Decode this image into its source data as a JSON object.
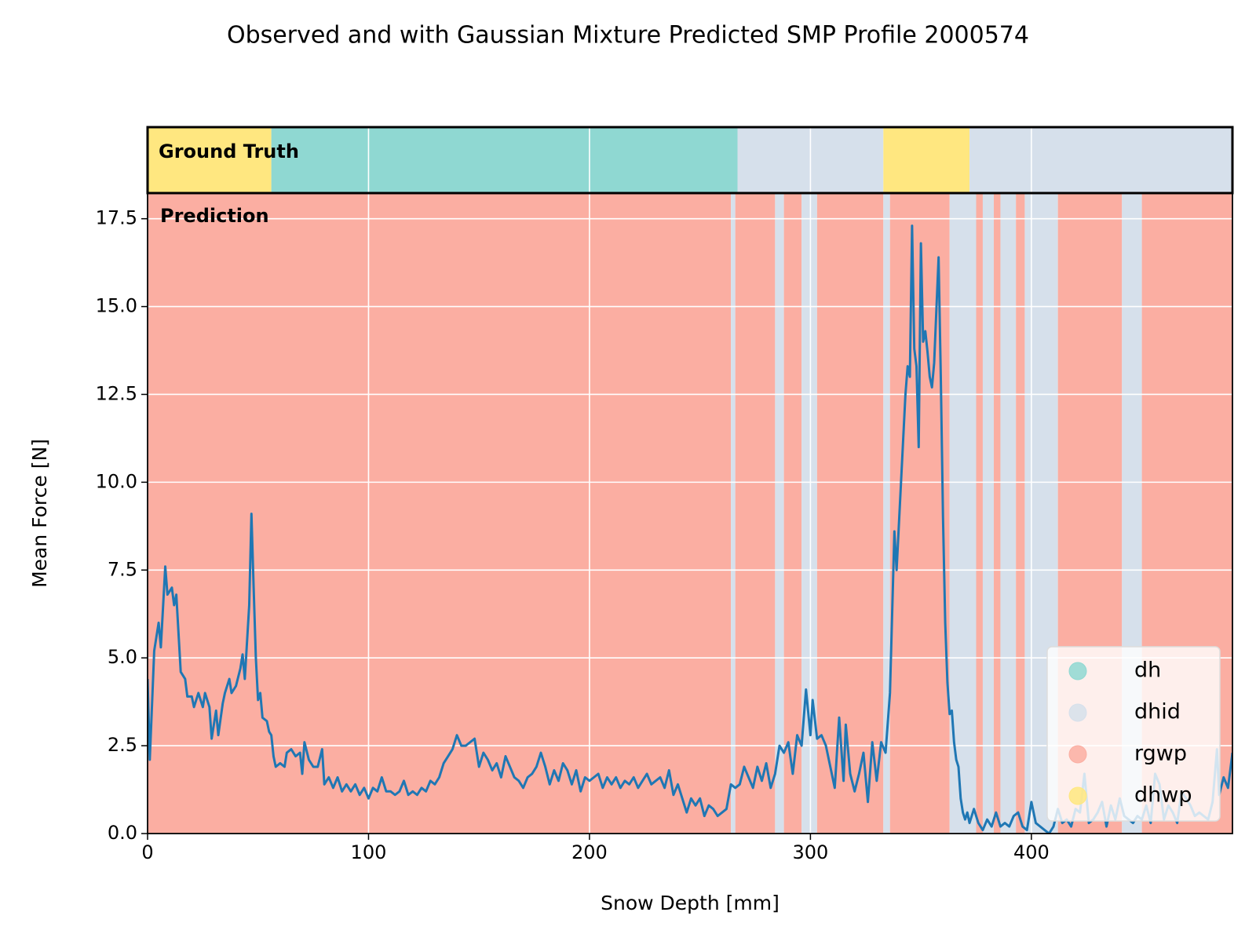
{
  "chart_data": {
    "type": "line",
    "title": "Observed and with Gaussian Mixture Predicted SMP Profile 2000574",
    "xlabel": "Snow Depth [mm]",
    "ylabel": "Mean Force [N]",
    "xlim": [
      0,
      491
    ],
    "ylim": [
      0,
      18.23
    ],
    "xticks": [
      0,
      100,
      200,
      300,
      400
    ],
    "yticks": [
      {
        "value": 0,
        "label": "0.0"
      },
      2.5,
      {
        "value": 5,
        "label": "5.0"
      },
      7.5,
      {
        "value": 10,
        "label": "10.0"
      },
      12.5,
      {
        "value": 15,
        "label": "15.0"
      },
      17.5
    ],
    "grid": true,
    "legend_loc": "lower right",
    "classes": [
      {
        "name": "dh",
        "color": "#8fd8d2"
      },
      {
        "name": "dhid",
        "color": "#d6e0eb"
      },
      {
        "name": "rgwp",
        "color": "#fbaea2"
      },
      {
        "name": "dhwp",
        "color": "#ffe780"
      }
    ],
    "ground_truth": {
      "label": "Ground Truth",
      "segments": [
        {
          "start": 0,
          "end": 56,
          "class": "dhwp"
        },
        {
          "start": 56,
          "end": 267,
          "class": "dh"
        },
        {
          "start": 267,
          "end": 333,
          "class": "dhid"
        },
        {
          "start": 333,
          "end": 372,
          "class": "dhwp"
        },
        {
          "start": 372,
          "end": 491,
          "class": "dhid"
        }
      ]
    },
    "prediction": {
      "label": "Prediction",
      "segments": [
        {
          "start": 0,
          "end": 264,
          "class": "rgwp"
        },
        {
          "start": 264,
          "end": 266,
          "class": "dhid"
        },
        {
          "start": 266,
          "end": 284,
          "class": "rgwp"
        },
        {
          "start": 284,
          "end": 288,
          "class": "dhid"
        },
        {
          "start": 288,
          "end": 296,
          "class": "rgwp"
        },
        {
          "start": 296,
          "end": 303,
          "class": "dhid"
        },
        {
          "start": 303,
          "end": 333,
          "class": "rgwp"
        },
        {
          "start": 333,
          "end": 336,
          "class": "dhid"
        },
        {
          "start": 336,
          "end": 363,
          "class": "rgwp"
        },
        {
          "start": 363,
          "end": 375,
          "class": "dhid"
        },
        {
          "start": 375,
          "end": 378,
          "class": "rgwp"
        },
        {
          "start": 378,
          "end": 383,
          "class": "dhid"
        },
        {
          "start": 383,
          "end": 386,
          "class": "rgwp"
        },
        {
          "start": 386,
          "end": 393,
          "class": "dhid"
        },
        {
          "start": 393,
          "end": 397,
          "class": "rgwp"
        },
        {
          "start": 397,
          "end": 412,
          "class": "dhid"
        },
        {
          "start": 412,
          "end": 441,
          "class": "rgwp"
        },
        {
          "start": 441,
          "end": 450,
          "class": "dhid"
        },
        {
          "start": 450,
          "end": 491,
          "class": "rgwp"
        }
      ]
    },
    "x": [
      0,
      1,
      3,
      5,
      6,
      8,
      9,
      11,
      12,
      13,
      15,
      17,
      18,
      20,
      21,
      23,
      25,
      26,
      28,
      29,
      31,
      32,
      34,
      35,
      37,
      38,
      40,
      42,
      43,
      44,
      46,
      47,
      48,
      49,
      50,
      51,
      52,
      54,
      55,
      56,
      57,
      58,
      60,
      62,
      63,
      65,
      67,
      69,
      70,
      71,
      73,
      75,
      77,
      79,
      80,
      82,
      84,
      86,
      88,
      90,
      92,
      94,
      96,
      98,
      100,
      102,
      104,
      106,
      108,
      110,
      112,
      114,
      116,
      118,
      120,
      122,
      124,
      126,
      128,
      130,
      132,
      134,
      136,
      138,
      140,
      142,
      144,
      146,
      148,
      150,
      152,
      154,
      156,
      158,
      160,
      162,
      164,
      166,
      168,
      170,
      172,
      174,
      176,
      178,
      180,
      182,
      184,
      186,
      188,
      190,
      192,
      194,
      196,
      198,
      200,
      202,
      204,
      206,
      208,
      210,
      212,
      214,
      216,
      218,
      220,
      222,
      224,
      226,
      228,
      230,
      232,
      234,
      236,
      238,
      240,
      242,
      244,
      246,
      248,
      250,
      252,
      254,
      256,
      258,
      260,
      262,
      264,
      266,
      268,
      270,
      272,
      274,
      276,
      278,
      280,
      282,
      284,
      286,
      288,
      290,
      292,
      294,
      296,
      298,
      300,
      301,
      303,
      305,
      307,
      309,
      311,
      313,
      315,
      316,
      318,
      320,
      322,
      324,
      326,
      328,
      330,
      332,
      334,
      336,
      338,
      339,
      341,
      343,
      344,
      345,
      346,
      347,
      348,
      349,
      350,
      351,
      352,
      353,
      354,
      355,
      356,
      358,
      359,
      360,
      361,
      362,
      363,
      364,
      365,
      366,
      367,
      368,
      369,
      370,
      371,
      372,
      374,
      376,
      378,
      380,
      382,
      384,
      386,
      388,
      390,
      392,
      394,
      396,
      398,
      400,
      402,
      404,
      406,
      408,
      410,
      412,
      414,
      416,
      418,
      420,
      422,
      424,
      426,
      428,
      430,
      432,
      434,
      436,
      438,
      440,
      442,
      444,
      446,
      448,
      450,
      452,
      454,
      456,
      458,
      460,
      462,
      464,
      466,
      468,
      470,
      472,
      474,
      476,
      478,
      480,
      482,
      484,
      485,
      487,
      489,
      491
    ],
    "series": [
      {
        "color": "#1f77b4",
        "values": [
          4.4,
          2.1,
          5.2,
          6.0,
          5.3,
          7.6,
          6.8,
          7.0,
          6.5,
          6.8,
          4.6,
          4.4,
          3.9,
          3.9,
          3.6,
          4.0,
          3.6,
          4.0,
          3.6,
          2.7,
          3.5,
          2.8,
          3.7,
          4.0,
          4.4,
          4.0,
          4.2,
          4.7,
          5.1,
          4.4,
          6.5,
          9.1,
          7.0,
          5.0,
          3.8,
          4.0,
          3.3,
          3.2,
          2.9,
          2.8,
          2.2,
          1.9,
          2.0,
          1.9,
          2.3,
          2.4,
          2.2,
          2.3,
          1.7,
          2.6,
          2.1,
          1.9,
          1.9,
          2.4,
          1.4,
          1.6,
          1.3,
          1.6,
          1.2,
          1.4,
          1.2,
          1.4,
          1.1,
          1.3,
          1.0,
          1.3,
          1.2,
          1.6,
          1.2,
          1.2,
          1.1,
          1.2,
          1.5,
          1.1,
          1.2,
          1.1,
          1.3,
          1.2,
          1.5,
          1.4,
          1.6,
          2.0,
          2.2,
          2.4,
          2.8,
          2.5,
          2.5,
          2.6,
          2.7,
          1.9,
          2.3,
          2.1,
          1.8,
          2.0,
          1.6,
          2.2,
          1.9,
          1.6,
          1.5,
          1.3,
          1.6,
          1.7,
          1.9,
          2.3,
          1.9,
          1.4,
          1.8,
          1.5,
          2.0,
          1.8,
          1.4,
          1.8,
          1.2,
          1.6,
          1.5,
          1.6,
          1.7,
          1.3,
          1.6,
          1.4,
          1.6,
          1.3,
          1.5,
          1.4,
          1.6,
          1.3,
          1.5,
          1.7,
          1.4,
          1.5,
          1.6,
          1.3,
          1.8,
          1.1,
          1.4,
          1.0,
          0.6,
          1.0,
          0.8,
          1.0,
          0.5,
          0.8,
          0.7,
          0.5,
          0.6,
          0.7,
          1.4,
          1.3,
          1.4,
          1.9,
          1.6,
          1.3,
          1.9,
          1.5,
          2.0,
          1.3,
          1.7,
          2.5,
          2.3,
          2.6,
          1.7,
          2.8,
          2.5,
          4.1,
          2.8,
          3.8,
          2.7,
          2.8,
          2.5,
          1.9,
          1.3,
          3.3,
          1.5,
          3.1,
          1.7,
          1.2,
          1.7,
          2.3,
          0.9,
          2.6,
          1.5,
          2.6,
          2.3,
          4.0,
          8.6,
          7.5,
          10.0,
          12.5,
          13.3,
          13.0,
          17.3,
          13.8,
          13.3,
          11.0,
          16.8,
          14.0,
          14.3,
          13.7,
          13.0,
          12.7,
          13.4,
          16.4,
          13.0,
          9.0,
          6.0,
          4.3,
          3.4,
          3.5,
          2.6,
          2.1,
          1.9,
          1.0,
          0.6,
          0.4,
          0.6,
          0.3,
          0.7,
          0.3,
          0.1,
          0.4,
          0.2,
          0.6,
          0.2,
          0.3,
          0.2,
          0.5,
          0.6,
          0.2,
          0.1,
          0.9,
          0.3,
          0.2,
          0.1,
          0.0,
          0.2,
          0.7,
          0.3,
          0.4,
          0.2,
          0.7,
          0.6,
          1.7,
          0.3,
          0.4,
          0.6,
          0.9,
          0.2,
          0.8,
          0.4,
          1.0,
          0.5,
          0.4,
          0.3,
          0.5,
          0.4,
          0.8,
          0.3,
          1.7,
          1.4,
          0.4,
          0.8,
          0.6,
          0.3,
          1.2,
          1.0,
          0.8,
          0.5,
          0.6,
          0.5,
          0.4,
          0.9,
          2.4,
          1.1,
          1.6,
          1.3,
          2.3
        ]
      }
    ]
  }
}
